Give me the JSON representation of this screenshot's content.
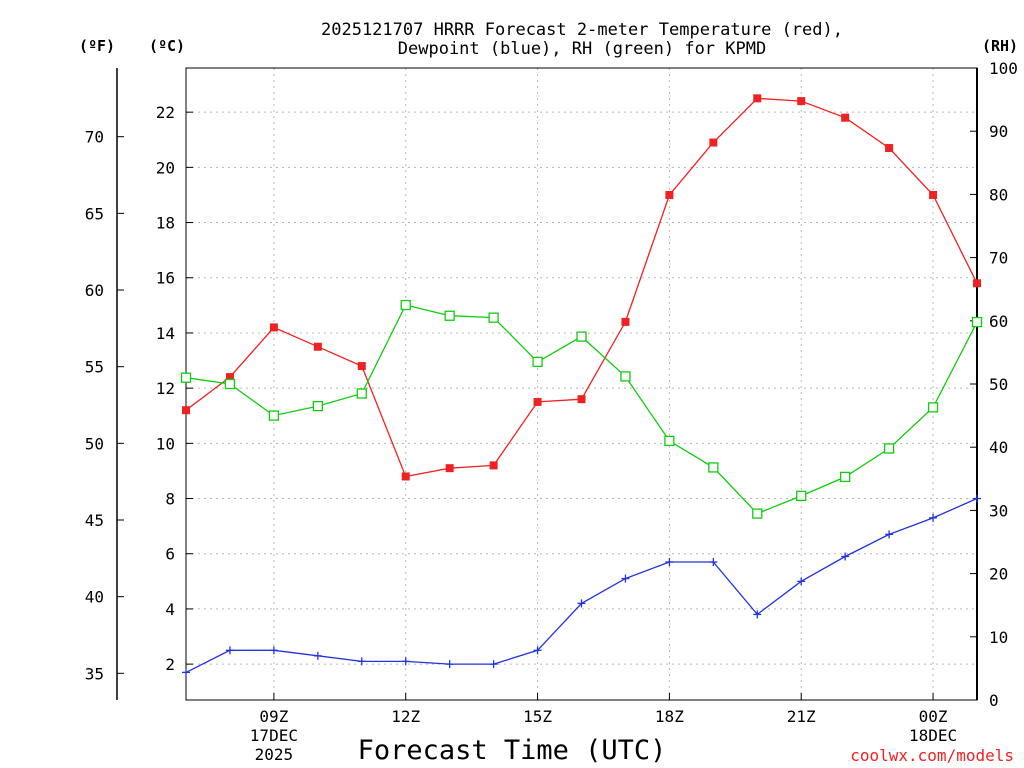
{
  "chart_data": {
    "type": "line",
    "title_line1": "2025121707 HRRR Forecast 2-meter Temperature (red),",
    "title_line2": "Dewpoint (blue), RH (green) for KPMD",
    "xlabel": "Forecast Time (UTC)",
    "unit_f": "(ºF)",
    "unit_c": "(ºC)",
    "unit_rh": "(RH)",
    "credit": "coolwx.com/models",
    "x_hours": [
      7,
      8,
      9,
      10,
      11,
      12,
      13,
      14,
      15,
      16,
      17,
      18,
      19,
      20,
      21,
      22,
      23,
      24,
      25
    ],
    "xlim": [
      7,
      25
    ],
    "x_ticks": [
      {
        "x": 9,
        "label": "09Z",
        "sub1": "17DEC",
        "sub2": "2025"
      },
      {
        "x": 12,
        "label": "12Z",
        "sub1": "",
        "sub2": ""
      },
      {
        "x": 15,
        "label": "15Z",
        "sub1": "",
        "sub2": ""
      },
      {
        "x": 18,
        "label": "18Z",
        "sub1": "",
        "sub2": ""
      },
      {
        "x": 21,
        "label": "21Z",
        "sub1": "",
        "sub2": ""
      },
      {
        "x": 24,
        "label": "00Z",
        "sub1": "18DEC",
        "sub2": ""
      }
    ],
    "ylim_c": [
      0.7,
      23.6
    ],
    "yticks_c": [
      2,
      4,
      6,
      8,
      10,
      12,
      14,
      16,
      18,
      20,
      22
    ],
    "ylim_f": [
      33.26,
      74.48
    ],
    "yticks_f": [
      35,
      40,
      45,
      50,
      55,
      60,
      65,
      70
    ],
    "ylim_rh": [
      0,
      100
    ],
    "yticks_rh": [
      0,
      10,
      20,
      30,
      40,
      50,
      60,
      70,
      80,
      90,
      100
    ],
    "series": [
      {
        "name": "Temperature",
        "unit": "C",
        "color": "#ee2222",
        "marker": "filled-square",
        "values": [
          11.2,
          12.4,
          14.2,
          13.5,
          12.8,
          8.8,
          9.1,
          9.2,
          11.5,
          11.6,
          14.4,
          19.0,
          20.9,
          22.5,
          22.4,
          21.8,
          20.7,
          19.0,
          15.8
        ]
      },
      {
        "name": "Dewpoint",
        "unit": "C",
        "color": "#2233dd",
        "marker": "plus",
        "values": [
          1.7,
          2.5,
          2.5,
          2.3,
          2.1,
          2.1,
          2.0,
          2.0,
          2.5,
          4.2,
          5.1,
          5.7,
          5.7,
          3.8,
          5.0,
          5.9,
          6.7,
          7.3,
          8.0
        ]
      },
      {
        "name": "RH",
        "unit": "%",
        "color": "#11cc11",
        "marker": "open-square",
        "values": [
          51,
          50,
          45,
          46.5,
          48.5,
          62.5,
          60.8,
          60.5,
          53.5,
          57.5,
          51.2,
          41,
          36.8,
          29.5,
          32.3,
          35.3,
          39.8,
          46.3,
          59.8
        ]
      }
    ],
    "grid": true
  }
}
